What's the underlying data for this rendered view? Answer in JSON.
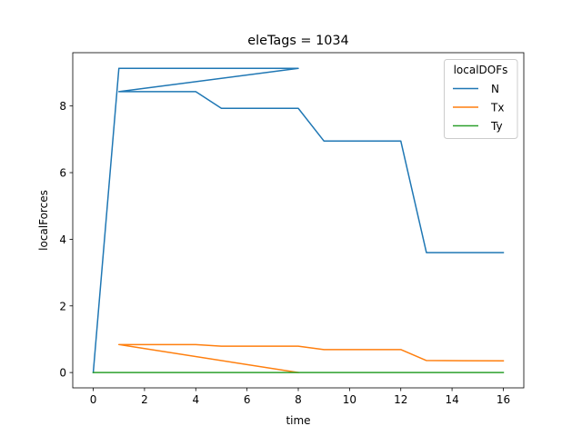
{
  "chart_data": {
    "type": "line",
    "title": "eleTags = 1034",
    "xlabel": "time",
    "ylabel": "localForces",
    "xlim": [
      -0.8,
      16.8
    ],
    "ylim": [
      -0.46,
      9.6
    ],
    "xticks": [
      0,
      2,
      4,
      6,
      8,
      10,
      12,
      14,
      16
    ],
    "yticks": [
      0,
      2,
      4,
      6,
      8
    ],
    "grid": false,
    "legend": {
      "title": "localDOFs",
      "placement": "top-right"
    },
    "series": [
      {
        "name": "N",
        "color": "#1f77b4",
        "x": [
          0,
          1,
          8,
          1,
          4,
          5,
          8,
          9,
          12,
          13,
          16
        ],
        "y": [
          0.0,
          9.13,
          9.13,
          8.43,
          8.43,
          7.93,
          7.93,
          6.95,
          6.95,
          3.6,
          3.6
        ]
      },
      {
        "name": "Tx",
        "color": "#ff7f0e",
        "x": [
          8,
          1,
          4,
          5,
          8,
          9,
          12,
          13,
          16
        ],
        "y": [
          0.0,
          0.84,
          0.84,
          0.79,
          0.79,
          0.69,
          0.69,
          0.36,
          0.35
        ]
      },
      {
        "name": "Ty",
        "color": "#2ca02c",
        "x": [
          0,
          16
        ],
        "y": [
          0.0,
          0.0
        ]
      }
    ]
  }
}
